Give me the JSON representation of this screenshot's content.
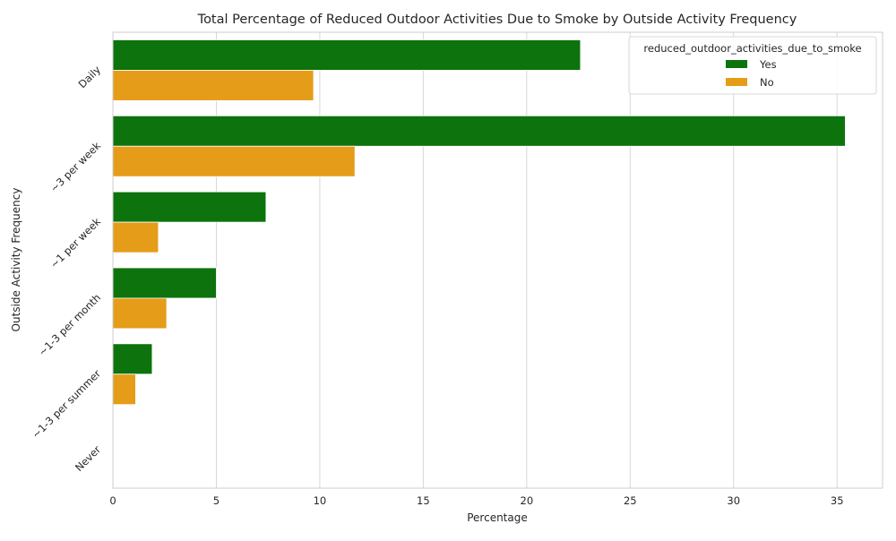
{
  "chart_data": {
    "type": "bar",
    "orientation": "horizontal",
    "title": "Total Percentage of Reduced Outdoor Activities Due to Smoke by Outside Activity Frequency",
    "xlabel": "Percentage",
    "ylabel": "Outside Activity Frequency",
    "categories": [
      "Daily",
      "~3 per week",
      "~1 per week",
      "~1-3 per month",
      "~1-3 per summer",
      "Never"
    ],
    "series": [
      {
        "name": "Yes",
        "color": "#0d730d",
        "values": [
          22.6,
          35.4,
          7.4,
          5.0,
          1.9,
          0
        ]
      },
      {
        "name": "No",
        "color": "#e59c18",
        "values": [
          9.7,
          11.7,
          2.2,
          2.6,
          1.1,
          0
        ]
      }
    ],
    "xlim": [
      0,
      37.2
    ],
    "xticks": [
      "0",
      "5",
      "10",
      "15",
      "20",
      "25",
      "30",
      "35"
    ],
    "grid": "vertical",
    "legend": {
      "title": "reduced_outdoor_activities_due_to_smoke",
      "placement": "top-right"
    }
  }
}
